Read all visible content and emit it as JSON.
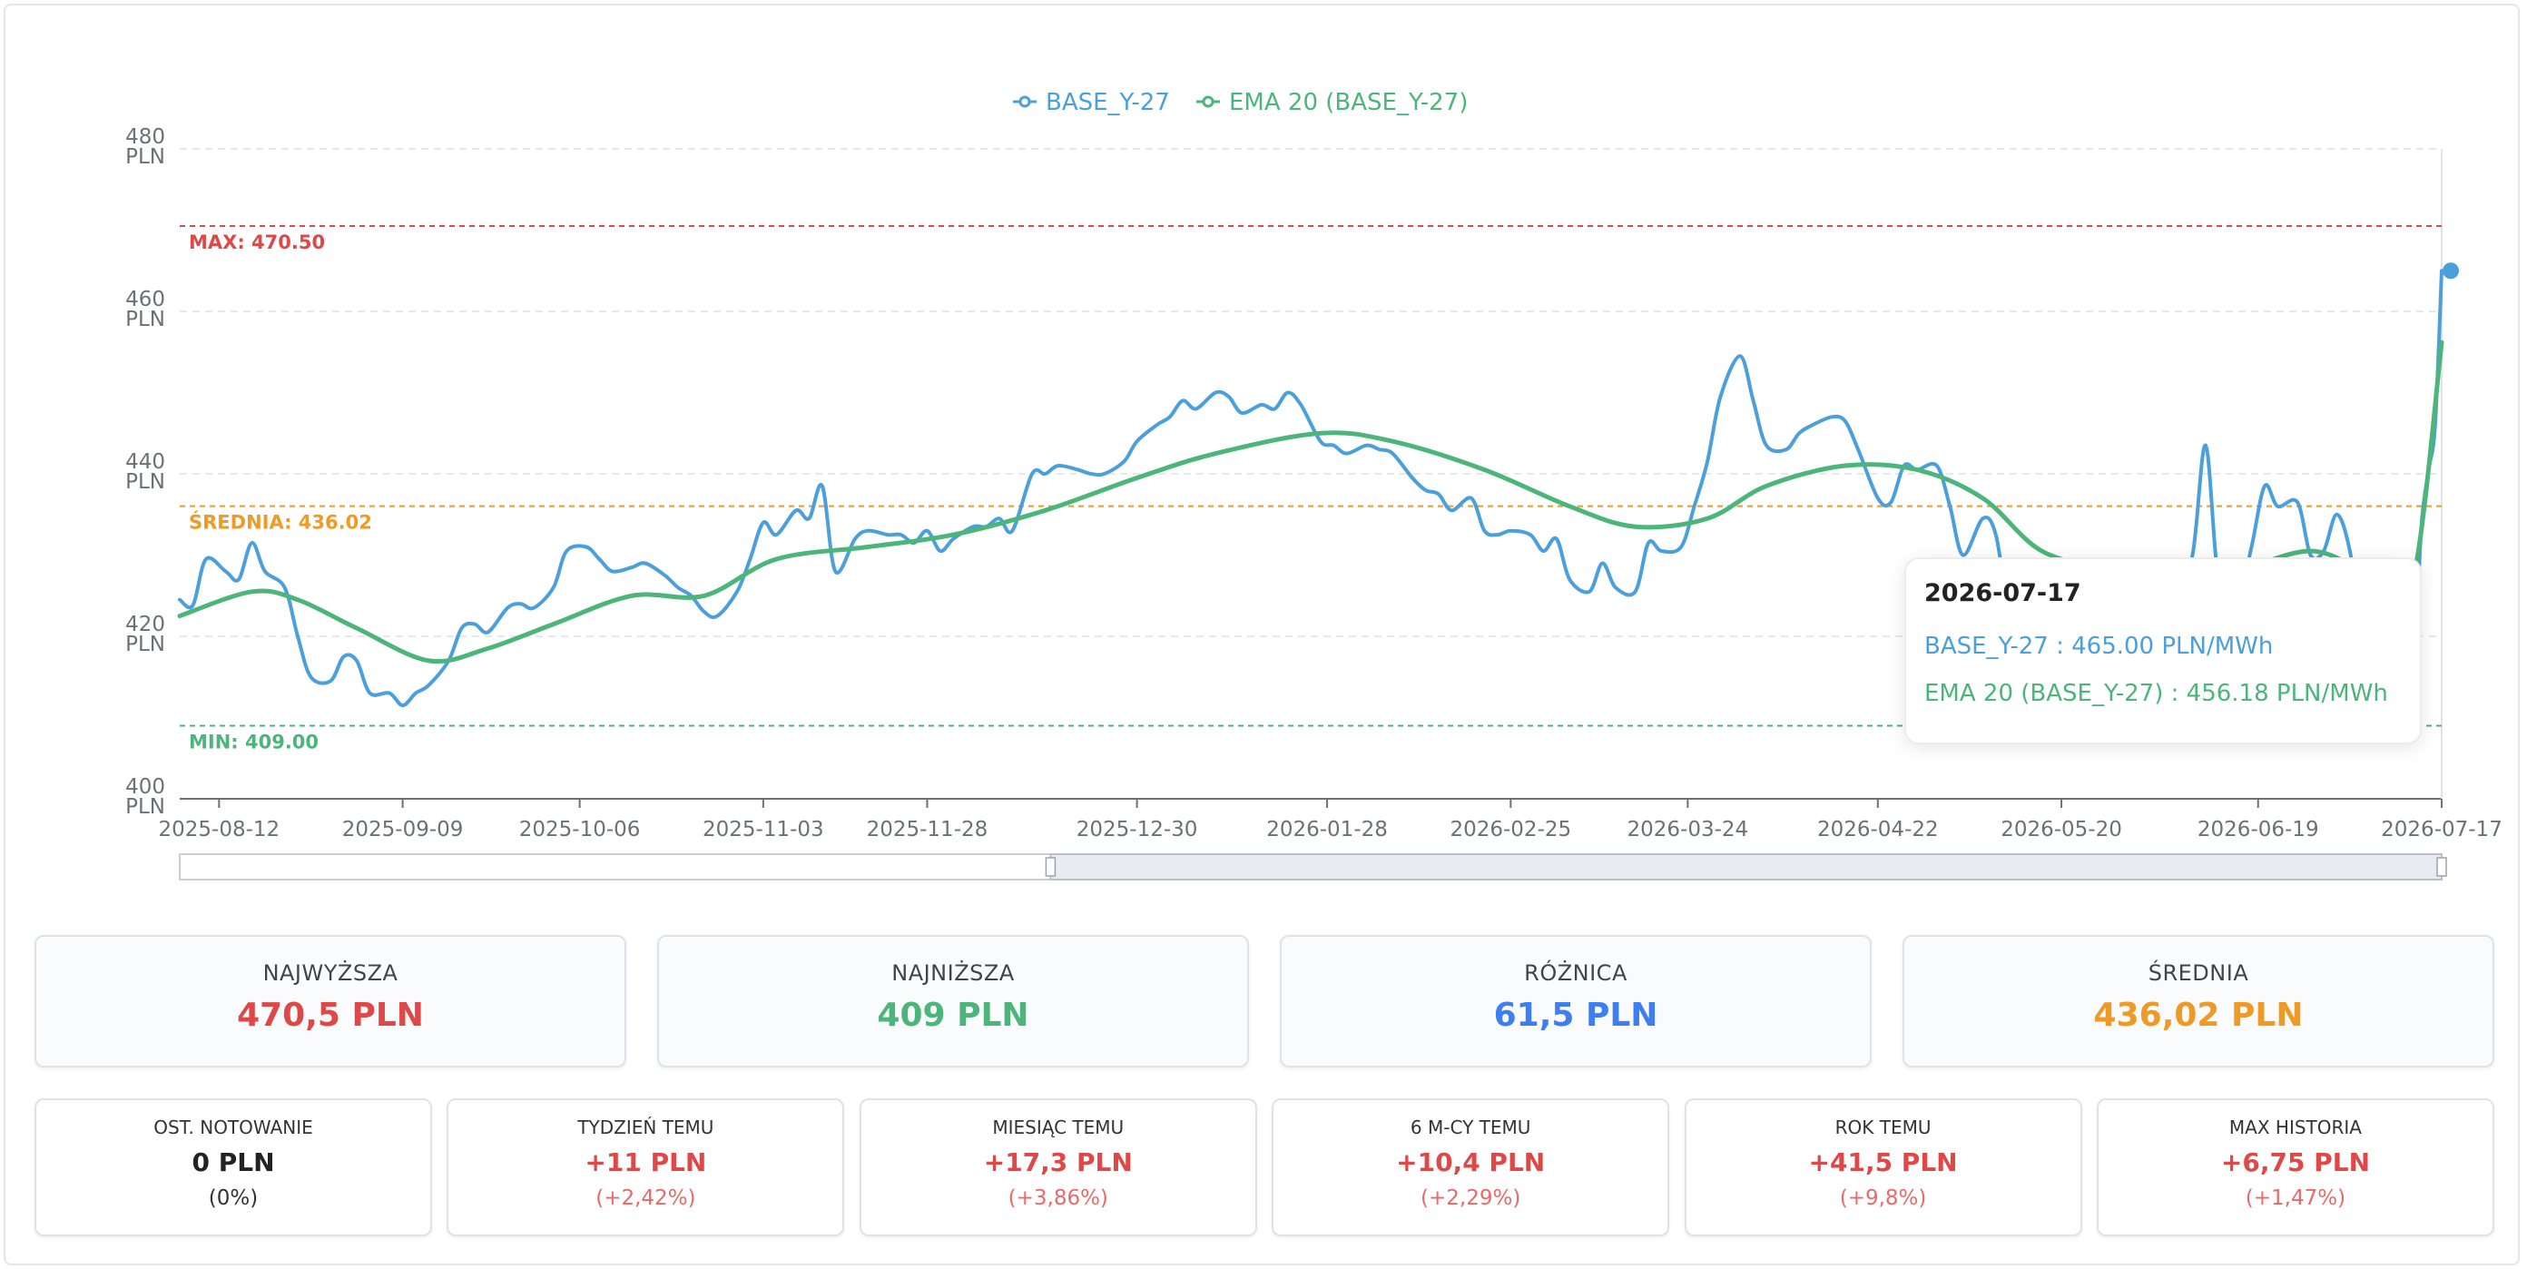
{
  "colors": {
    "series": "#4a9fdc",
    "ema": "#4bb57a",
    "max": "#e04848",
    "min": "#4bb57a",
    "avg": "#ef9a24",
    "diff": "#3f7ef0",
    "neutral": "#222222"
  },
  "chart_data": {
    "type": "line",
    "ylim": [
      400,
      480
    ],
    "yticks": [
      "400\nPLN",
      "420\nPLN",
      "440\nPLN",
      "460\nPLN",
      "480\nPLN"
    ],
    "ytick_values": [
      400,
      420,
      440,
      460,
      480
    ],
    "x_start": "2025-08-06",
    "x_end": "2026-07-17",
    "xtick_labels": [
      "2025-08-12",
      "2025-09-09",
      "2025-10-06",
      "2025-11-03",
      "2025-11-28",
      "2025-12-30",
      "2026-01-28",
      "2026-02-25",
      "2026-03-24",
      "2026-04-22",
      "2026-05-20",
      "2026-06-19",
      "2026-07-17"
    ],
    "legend": [
      "BASE_Y-27",
      "EMA 20 (BASE_Y-27)"
    ],
    "legend_position": "top-center",
    "grid": true,
    "reference_lines": [
      {
        "label": "MAX: 470.50",
        "value": 470.5,
        "color": "#e04848"
      },
      {
        "label": "ŚREDNIA: 436.02",
        "value": 436.02,
        "color": "#ef9a24"
      },
      {
        "label": "MIN: 409.00",
        "value": 409.0,
        "color": "#4bb57a"
      }
    ],
    "series": [
      {
        "name": "BASE_Y-27",
        "color": "#4a9fdc",
        "points": [
          [
            "2025-08-06",
            424.5
          ],
          [
            "2025-08-08",
            423.8
          ],
          [
            "2025-08-10",
            429.5
          ],
          [
            "2025-08-13",
            428.0
          ],
          [
            "2025-08-15",
            427.0
          ],
          [
            "2025-08-17",
            431.5
          ],
          [
            "2025-08-19",
            428.0
          ],
          [
            "2025-08-22",
            426.0
          ],
          [
            "2025-08-24",
            420.0
          ],
          [
            "2025-08-26",
            415.0
          ],
          [
            "2025-08-29",
            414.5
          ],
          [
            "2025-08-31",
            417.5
          ],
          [
            "2025-09-02",
            417.0
          ],
          [
            "2025-09-04",
            413.0
          ],
          [
            "2025-09-07",
            413.0
          ],
          [
            "2025-09-09",
            411.5
          ],
          [
            "2025-09-11",
            413.0
          ],
          [
            "2025-09-13",
            414.0
          ],
          [
            "2025-09-16",
            417.0
          ],
          [
            "2025-09-18",
            421.0
          ],
          [
            "2025-09-20",
            421.5
          ],
          [
            "2025-09-22",
            420.5
          ],
          [
            "2025-09-25",
            423.5
          ],
          [
            "2025-09-27",
            424.0
          ],
          [
            "2025-09-29",
            423.5
          ],
          [
            "2025-10-02",
            426.0
          ],
          [
            "2025-10-04",
            430.5
          ],
          [
            "2025-10-07",
            431.0
          ],
          [
            "2025-10-09",
            429.5
          ],
          [
            "2025-10-11",
            428.0
          ],
          [
            "2025-10-14",
            428.5
          ],
          [
            "2025-10-16",
            429.0
          ],
          [
            "2025-10-19",
            427.5
          ],
          [
            "2025-10-21",
            426.0
          ],
          [
            "2025-10-23",
            425.0
          ],
          [
            "2025-10-25",
            423.0
          ],
          [
            "2025-10-27",
            422.5
          ],
          [
            "2025-10-30",
            425.5
          ],
          [
            "2025-11-01",
            429.5
          ],
          [
            "2025-11-03",
            434.0
          ],
          [
            "2025-11-05",
            432.5
          ],
          [
            "2025-11-08",
            435.5
          ],
          [
            "2025-11-10",
            434.5
          ],
          [
            "2025-11-12",
            438.5
          ],
          [
            "2025-11-14",
            428.0
          ],
          [
            "2025-11-17",
            432.0
          ],
          [
            "2025-11-19",
            433.0
          ],
          [
            "2025-11-22",
            432.5
          ],
          [
            "2025-11-24",
            432.5
          ],
          [
            "2025-11-26",
            431.5
          ],
          [
            "2025-11-28",
            433.0
          ],
          [
            "2025-11-30",
            430.5
          ],
          [
            "2025-12-02",
            432.0
          ],
          [
            "2025-12-05",
            433.5
          ],
          [
            "2025-12-07",
            433.5
          ],
          [
            "2025-12-09",
            434.5
          ],
          [
            "2025-12-11",
            433.0
          ],
          [
            "2025-12-14",
            440.0
          ],
          [
            "2025-12-16",
            440.0
          ],
          [
            "2025-12-18",
            441.0
          ],
          [
            "2025-12-21",
            440.5
          ],
          [
            "2025-12-23",
            440.0
          ],
          [
            "2025-12-25",
            440.0
          ],
          [
            "2025-12-28",
            441.5
          ],
          [
            "2025-12-30",
            444.0
          ],
          [
            "2026-01-02",
            446.0
          ],
          [
            "2026-01-04",
            447.0
          ],
          [
            "2026-01-06",
            449.0
          ],
          [
            "2026-01-08",
            448.0
          ],
          [
            "2026-01-11",
            450.0
          ],
          [
            "2026-01-13",
            449.5
          ],
          [
            "2026-01-15",
            447.5
          ],
          [
            "2026-01-18",
            448.5
          ],
          [
            "2026-01-20",
            448.0
          ],
          [
            "2026-01-22",
            450.0
          ],
          [
            "2026-01-24",
            448.5
          ],
          [
            "2026-01-27",
            444.0
          ],
          [
            "2026-01-29",
            443.5
          ],
          [
            "2026-01-31",
            442.5
          ],
          [
            "2026-02-03",
            443.5
          ],
          [
            "2026-02-05",
            443.0
          ],
          [
            "2026-02-07",
            442.5
          ],
          [
            "2026-02-10",
            439.5
          ],
          [
            "2026-02-12",
            438.0
          ],
          [
            "2026-02-14",
            437.5
          ],
          [
            "2026-02-16",
            435.5
          ],
          [
            "2026-02-19",
            437.0
          ],
          [
            "2026-02-21",
            433.0
          ],
          [
            "2026-02-23",
            432.5
          ],
          [
            "2026-02-25",
            433.0
          ],
          [
            "2026-02-28",
            432.5
          ],
          [
            "2026-03-02",
            430.5
          ],
          [
            "2026-03-04",
            432.0
          ],
          [
            "2026-03-06",
            427.0
          ],
          [
            "2026-03-09",
            425.5
          ],
          [
            "2026-03-11",
            429.0
          ],
          [
            "2026-03-13",
            426.0
          ],
          [
            "2026-03-16",
            425.5
          ],
          [
            "2026-03-18",
            431.5
          ],
          [
            "2026-03-20",
            430.5
          ],
          [
            "2026-03-23",
            431.0
          ],
          [
            "2026-03-25",
            436.0
          ],
          [
            "2026-03-27",
            441.5
          ],
          [
            "2026-03-29",
            449.5
          ],
          [
            "2026-04-01",
            454.5
          ],
          [
            "2026-04-03",
            449.0
          ],
          [
            "2026-04-05",
            443.5
          ],
          [
            "2026-04-08",
            443.0
          ],
          [
            "2026-04-10",
            445.0
          ],
          [
            "2026-04-12",
            446.0
          ],
          [
            "2026-04-15",
            447.0
          ],
          [
            "2026-04-17",
            446.5
          ],
          [
            "2026-04-19",
            443.0
          ],
          [
            "2026-04-22",
            437.0
          ],
          [
            "2026-04-24",
            436.5
          ],
          [
            "2026-04-26",
            441.0
          ],
          [
            "2026-04-28",
            440.5
          ],
          [
            "2026-05-01",
            441.0
          ],
          [
            "2026-05-03",
            436.0
          ],
          [
            "2026-05-05",
            430.0
          ],
          [
            "2026-05-08",
            434.5
          ],
          [
            "2026-05-10",
            432.5
          ],
          [
            "2026-05-12",
            423.0
          ],
          [
            "2026-05-15",
            417.0
          ],
          [
            "2026-05-17",
            417.5
          ],
          [
            "2026-05-19",
            411.5
          ],
          [
            "2026-05-21",
            409.0
          ],
          [
            "2026-05-23",
            418.0
          ],
          [
            "2026-05-26",
            425.0
          ],
          [
            "2026-05-28",
            424.0
          ],
          [
            "2026-05-30",
            418.5
          ],
          [
            "2026-06-02",
            422.0
          ],
          [
            "2026-06-04",
            417.5
          ],
          [
            "2026-06-06",
            423.0
          ],
          [
            "2026-06-09",
            430.0
          ],
          [
            "2026-06-11",
            443.5
          ],
          [
            "2026-06-13",
            427.0
          ],
          [
            "2026-06-16",
            425.0
          ],
          [
            "2026-06-18",
            431.0
          ],
          [
            "2026-06-20",
            438.5
          ],
          [
            "2026-06-22",
            436.0
          ],
          [
            "2026-06-25",
            436.5
          ],
          [
            "2026-06-27",
            430.0
          ],
          [
            "2026-06-29",
            430.5
          ],
          [
            "2026-07-01",
            435.0
          ],
          [
            "2026-07-03",
            430.5
          ],
          [
            "2026-07-05",
            420.0
          ],
          [
            "2026-07-07",
            419.5
          ],
          [
            "2026-07-09",
            420.5
          ],
          [
            "2026-07-11",
            423.5
          ],
          [
            "2026-07-13",
            423.0
          ],
          [
            "2026-07-14",
            434.5
          ],
          [
            "2026-07-15",
            440.5
          ],
          [
            "2026-07-16",
            446.0
          ],
          [
            "2026-07-17",
            465.0
          ]
        ]
      },
      {
        "name": "EMA 20 (BASE_Y-27)",
        "color": "#4bb57a",
        "points": [
          [
            "2025-08-06",
            422.5
          ],
          [
            "2025-08-17",
            425.5
          ],
          [
            "2025-08-24",
            424.5
          ],
          [
            "2025-09-02",
            421.0
          ],
          [
            "2025-09-13",
            417.0
          ],
          [
            "2025-09-22",
            418.5
          ],
          [
            "2025-10-02",
            421.5
          ],
          [
            "2025-10-14",
            425.0
          ],
          [
            "2025-10-25",
            425.0
          ],
          [
            "2025-11-05",
            429.5
          ],
          [
            "2025-11-19",
            431.0
          ],
          [
            "2025-12-02",
            432.5
          ],
          [
            "2025-12-16",
            435.5
          ],
          [
            "2025-12-30",
            439.5
          ],
          [
            "2026-01-11",
            442.5
          ],
          [
            "2026-01-27",
            445.0
          ],
          [
            "2026-02-07",
            444.0
          ],
          [
            "2026-02-21",
            440.5
          ],
          [
            "2026-03-06",
            436.0
          ],
          [
            "2026-03-16",
            433.5
          ],
          [
            "2026-03-27",
            434.5
          ],
          [
            "2026-04-05",
            438.5
          ],
          [
            "2026-04-17",
            441.0
          ],
          [
            "2026-04-28",
            440.5
          ],
          [
            "2026-05-08",
            437.0
          ],
          [
            "2026-05-17",
            430.5
          ],
          [
            "2026-05-28",
            428.0
          ],
          [
            "2026-06-06",
            425.5
          ],
          [
            "2026-06-16",
            428.0
          ],
          [
            "2026-06-27",
            430.5
          ],
          [
            "2026-07-05",
            428.0
          ],
          [
            "2026-07-09",
            426.5
          ],
          [
            "2026-07-13",
            428.5
          ],
          [
            "2026-07-17",
            456.18
          ]
        ]
      }
    ]
  },
  "tooltip": {
    "date": "2026-07-17",
    "rows": [
      {
        "text": "BASE_Y-27 : 465.00 PLN/MWh",
        "color": "#4a9fdc"
      },
      {
        "text": "EMA 20 (BASE_Y-27) : 456.18 PLN/MWh",
        "color": "#4bb57a"
      }
    ]
  },
  "zoom": {
    "start": 0.385,
    "end": 1.0
  },
  "stats": [
    {
      "label": "NAJWYŻSZA",
      "value": "470,5 PLN",
      "color": "#e04848"
    },
    {
      "label": "NAJNIŻSZA",
      "value": "409 PLN",
      "color": "#4bb57a"
    },
    {
      "label": "RÓŻNICA",
      "value": "61,5 PLN",
      "color": "#3f7ef0"
    },
    {
      "label": "ŚREDNIA",
      "value": "436,02 PLN",
      "color": "#ef9a24"
    }
  ],
  "changes": [
    {
      "label": "OST. NOTOWANIE",
      "value": "0 PLN",
      "pct": "(0%)",
      "color": "#222222",
      "pct_color": "#333333"
    },
    {
      "label": "TYDZIEŃ TEMU",
      "value": "+11 PLN",
      "pct": "(+2,42%)",
      "color": "#e04848",
      "pct_color": "#e86a6a"
    },
    {
      "label": "MIESIĄC TEMU",
      "value": "+17,3 PLN",
      "pct": "(+3,86%)",
      "color": "#e04848",
      "pct_color": "#e86a6a"
    },
    {
      "label": "6 M-CY TEMU",
      "value": "+10,4 PLN",
      "pct": "(+2,29%)",
      "color": "#e04848",
      "pct_color": "#e86a6a"
    },
    {
      "label": "ROK TEMU",
      "value": "+41,5 PLN",
      "pct": "(+9,8%)",
      "color": "#e04848",
      "pct_color": "#e86a6a"
    },
    {
      "label": "MAX HISTORIA",
      "value": "+6,75 PLN",
      "pct": "(+1,47%)",
      "color": "#e04848",
      "pct_color": "#e86a6a"
    }
  ]
}
